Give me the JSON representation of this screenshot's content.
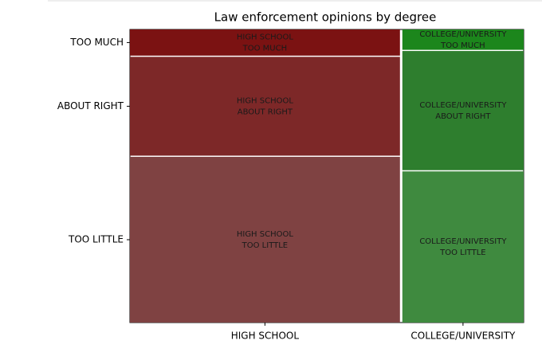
{
  "chart_data": {
    "type": "mosaic",
    "title": "Law enforcement opinions by degree",
    "categories": [
      "HIGH SCHOOL",
      "COLLEGE/UNIVERSITY"
    ],
    "column_shares": [
      0.69,
      0.31
    ],
    "series": [
      {
        "name": "TOO LITTLE",
        "color": [
          "#7f4242",
          "#3f8a3f"
        ],
        "values": [
          0.57,
          0.52
        ]
      },
      {
        "name": "ABOUT RIGHT",
        "color": [
          "#7d2828",
          "#2e7e2e"
        ],
        "values": [
          0.34,
          0.41
        ]
      },
      {
        "name": "TOO MUCH",
        "color": [
          "#7b1212",
          "#1c861c"
        ],
        "values": [
          0.09,
          0.07
        ]
      }
    ]
  }
}
